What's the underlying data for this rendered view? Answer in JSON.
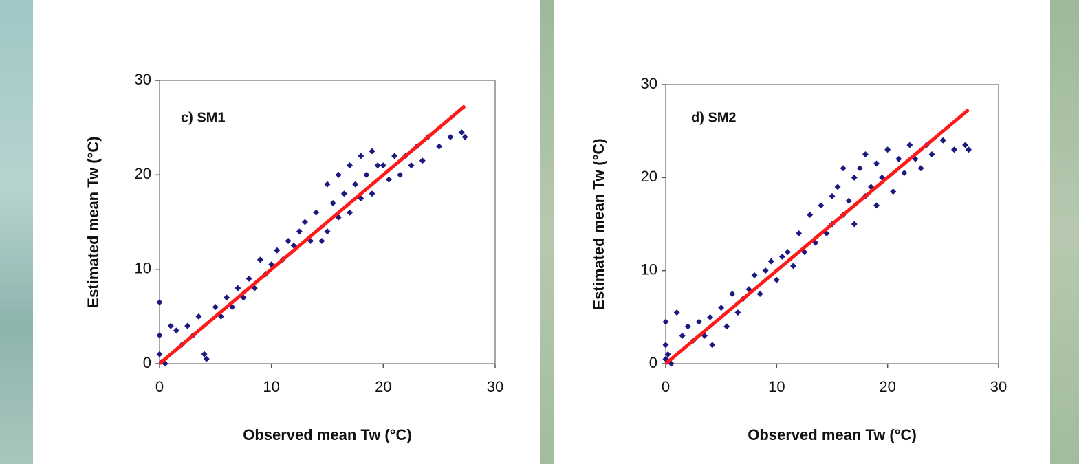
{
  "chart_data": [
    {
      "type": "scatter",
      "annotation": "c) SM1",
      "x_label": "Observed mean  Tw (°C)",
      "y_label": "Estimated mean Tw (°C)",
      "xlim": [
        0,
        30
      ],
      "ylim": [
        0,
        30
      ],
      "xticks": [
        0,
        10,
        20,
        30
      ],
      "yticks": [
        0,
        10,
        20,
        30
      ],
      "series": [
        {
          "color": "#1a1a80",
          "x": [
            0,
            0,
            0,
            0.2,
            0.5,
            1,
            1.5,
            2,
            2.5,
            3,
            3.5,
            4,
            4.2,
            5,
            5.5,
            6,
            6.5,
            7,
            7.5,
            8,
            8.5,
            9,
            9.5,
            10,
            10.5,
            11,
            11.5,
            12,
            12.5,
            13,
            13.5,
            14,
            14.5,
            15,
            15,
            15.5,
            16,
            16,
            16.5,
            17,
            17,
            17.5,
            18,
            18,
            18.5,
            19,
            19,
            19.5,
            20,
            20.5,
            21,
            21.5,
            22,
            22.5,
            23,
            23.5,
            24,
            25,
            26,
            27,
            27.3
          ],
          "values": [
            6.5,
            3,
            1,
            0.2,
            0,
            4,
            3.5,
            2,
            4,
            3,
            5,
            1,
            0.5,
            6,
            5,
            7,
            6,
            8,
            7,
            9,
            8,
            11,
            9.5,
            10.5,
            12,
            11,
            13,
            12.5,
            14,
            15,
            13,
            16,
            13,
            19,
            14,
            17,
            20,
            15.5,
            18,
            21,
            16,
            19,
            22,
            17.5,
            20,
            22.5,
            18,
            21,
            21,
            19.5,
            22,
            20,
            22,
            21,
            23,
            21.5,
            24,
            23,
            24,
            24.5,
            24
          ]
        },
        {
          "type": "line",
          "color": "#ff1a1a",
          "x": [
            0,
            27.3
          ],
          "values": [
            0,
            27.3
          ]
        }
      ]
    },
    {
      "type": "scatter",
      "annotation": "d) SM2",
      "x_label": "Observed mean  Tw (°C)",
      "y_label": "Estimated mean Tw (°C)",
      "xlim": [
        0,
        30
      ],
      "ylim": [
        0,
        30
      ],
      "xticks": [
        0,
        10,
        20,
        30
      ],
      "yticks": [
        0,
        10,
        20,
        30
      ],
      "series": [
        {
          "color": "#1a1a80",
          "x": [
            0,
            0,
            0,
            0.2,
            0.5,
            1,
            1.5,
            2,
            2.5,
            3,
            3.5,
            4,
            4.2,
            5,
            5.5,
            6,
            6.5,
            7,
            7.5,
            8,
            8.5,
            9,
            9.5,
            10,
            10.5,
            11,
            11.5,
            12,
            12.5,
            13,
            13.5,
            14,
            14.5,
            15,
            15,
            15.5,
            16,
            16,
            16.5,
            17,
            17,
            17.5,
            18,
            18,
            18.5,
            19,
            19,
            19.5,
            20,
            20.5,
            21,
            21.5,
            22,
            22.5,
            23,
            23.5,
            24,
            25,
            26,
            27,
            27.3
          ],
          "values": [
            4.5,
            2,
            0.5,
            1,
            0,
            5.5,
            3,
            4,
            2.5,
            4.5,
            3,
            5,
            2,
            6,
            4,
            7.5,
            5.5,
            7,
            8,
            9.5,
            7.5,
            10,
            11,
            9,
            11.5,
            12,
            10.5,
            14,
            12,
            16,
            13,
            17,
            14,
            18,
            15,
            19,
            21,
            16,
            17.5,
            20,
            15,
            21,
            18,
            22.5,
            19,
            17,
            21.5,
            20,
            23,
            18.5,
            22,
            20.5,
            23.5,
            22,
            21,
            23.5,
            22.5,
            24,
            23,
            23.5,
            23
          ]
        },
        {
          "type": "line",
          "color": "#ff1a1a",
          "x": [
            0,
            27.3
          ],
          "values": [
            0,
            27.3
          ]
        }
      ]
    }
  ]
}
